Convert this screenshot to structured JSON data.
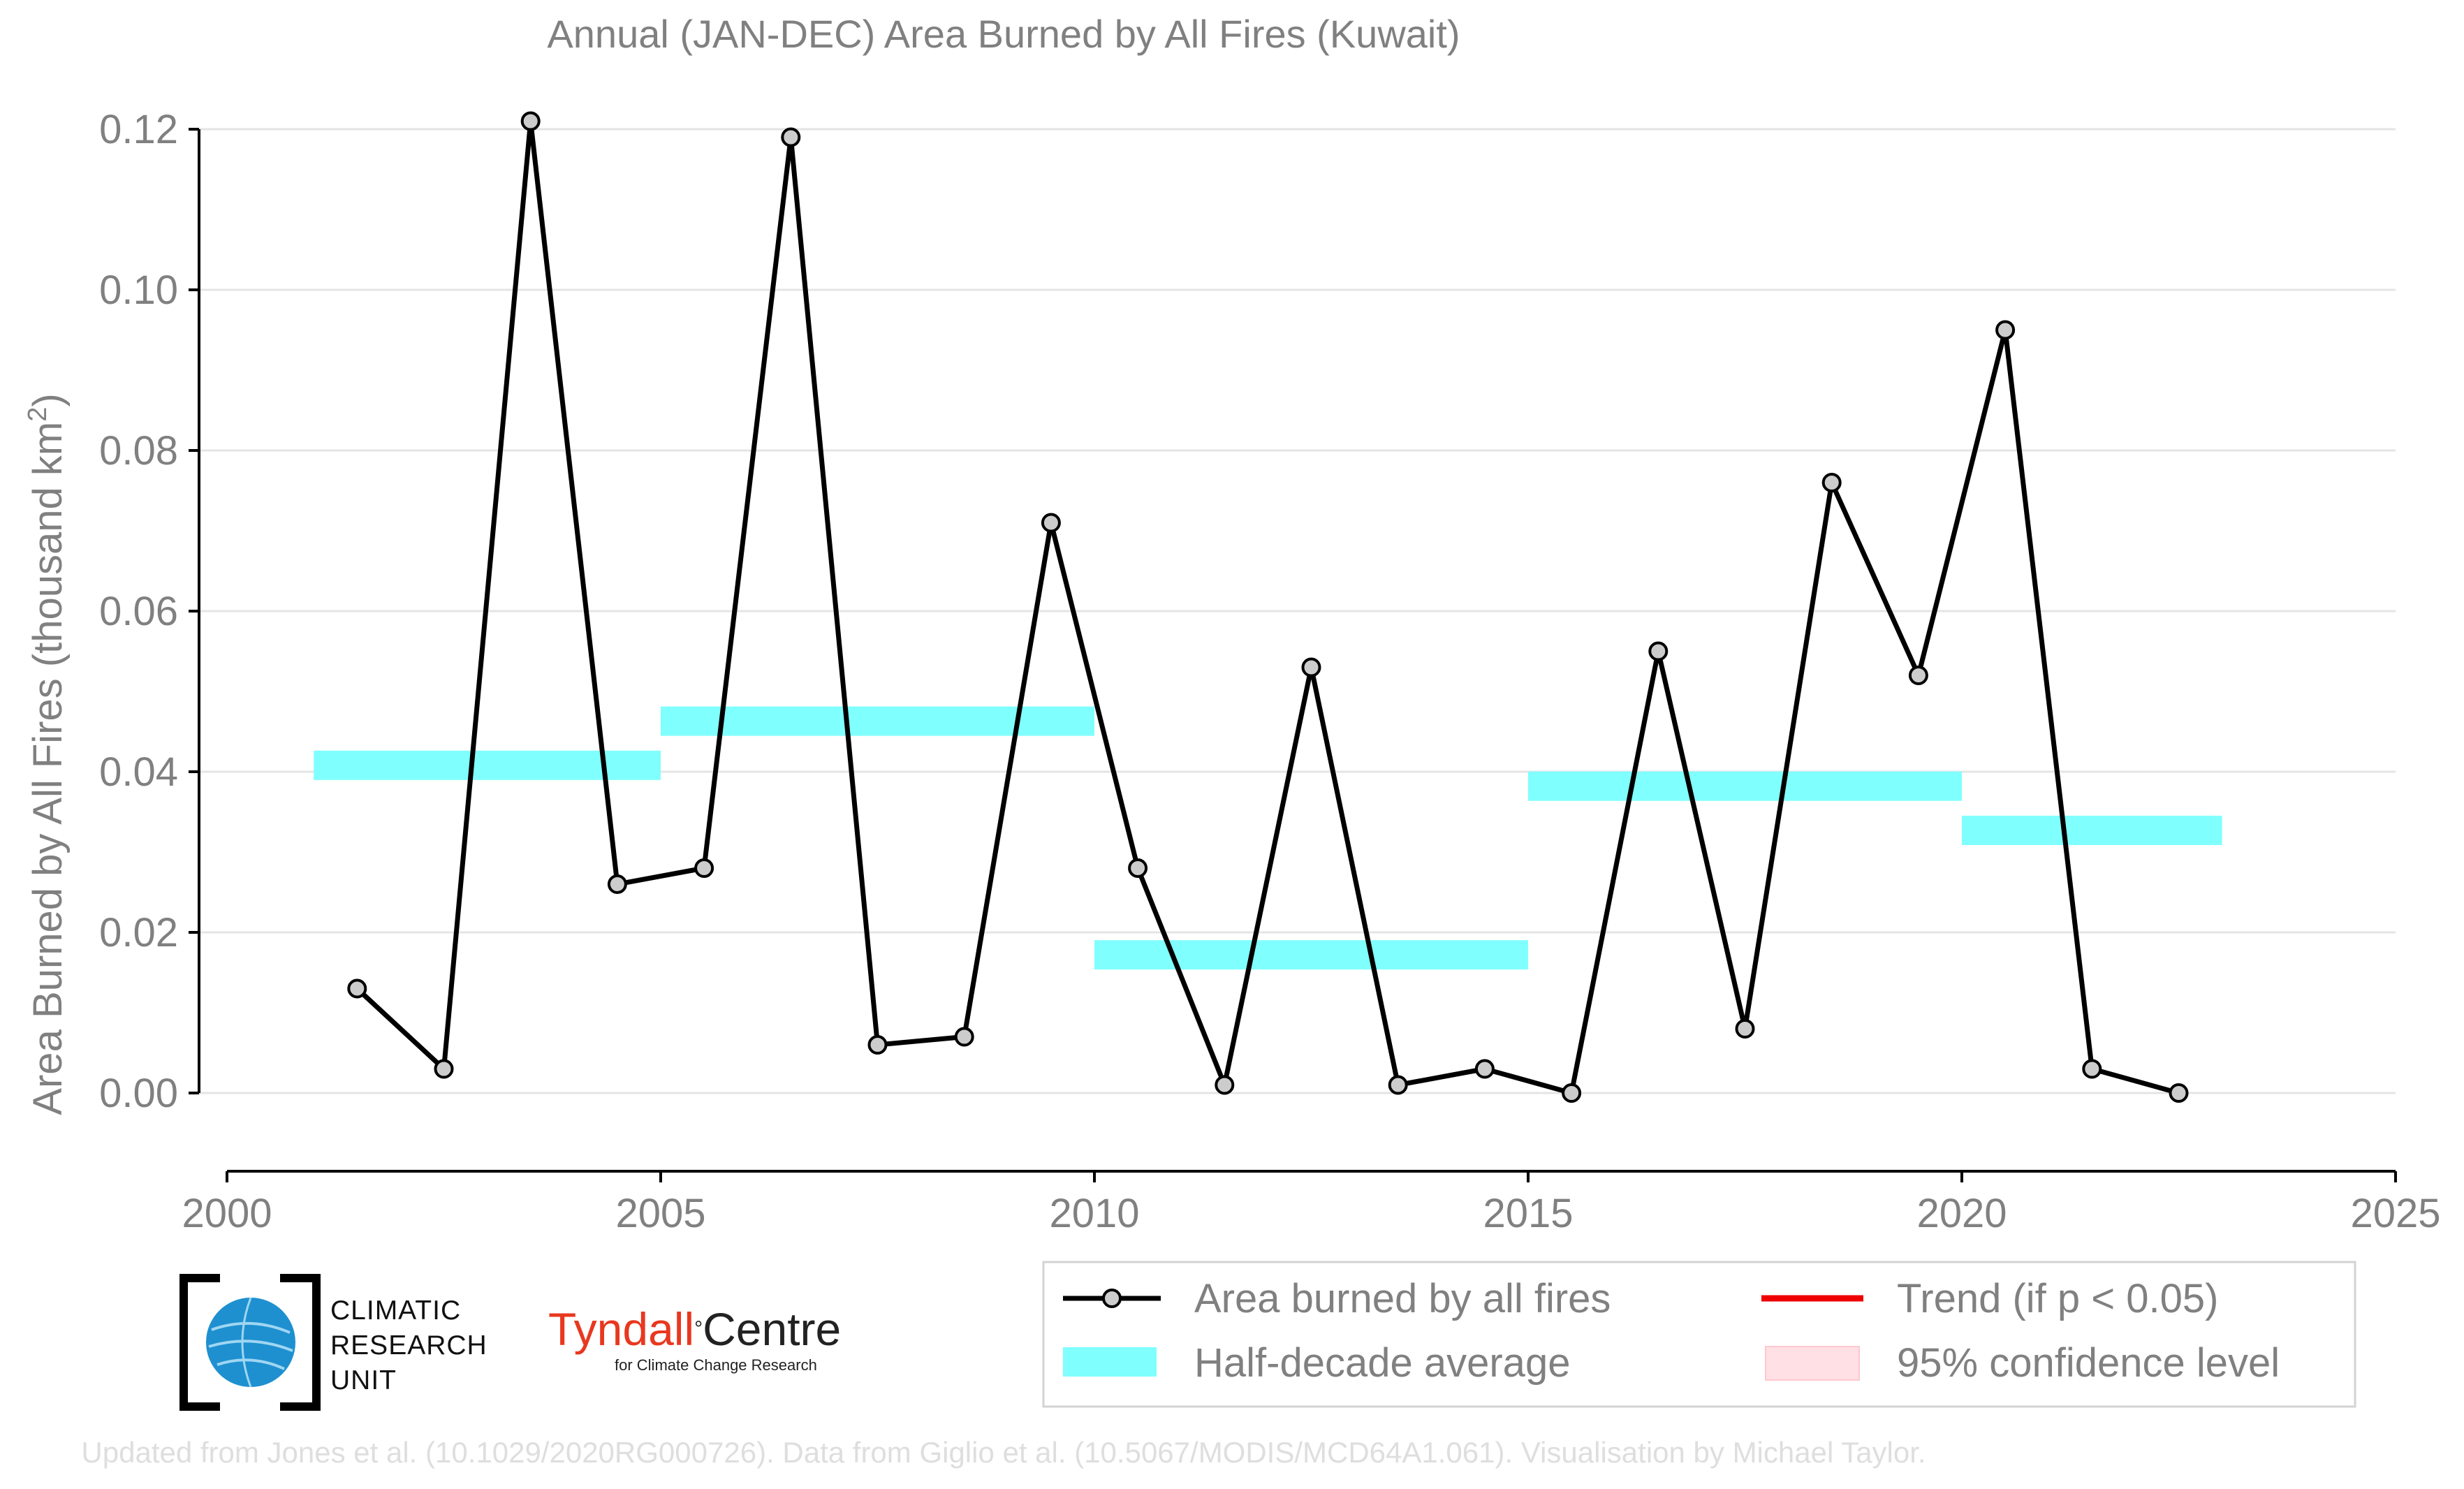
{
  "chart_data": {
    "type": "line",
    "title": "Annual (JAN-DEC) Area Burned by All Fires (Kuwait)",
    "ylabel": "Area Burned by All Fires (thousand km",
    "ylabel_sup": "2",
    "ylabel_close": ")",
    "xlim": [
      2000,
      2025
    ],
    "ylim": [
      -0.01,
      0.122
    ],
    "x_ticks": [
      2000,
      2005,
      2010,
      2015,
      2020,
      2025
    ],
    "x_tick_labels": [
      "2000",
      "2005",
      "2010",
      "2015",
      "2020",
      "2025"
    ],
    "y_ticks": [
      0.0,
      0.02,
      0.04,
      0.06,
      0.08,
      0.1,
      0.12
    ],
    "y_tick_labels": [
      "0.00",
      "0.02",
      "0.04",
      "0.06",
      "0.08",
      "0.10",
      "0.12"
    ],
    "grid": "horizontal",
    "legend_position": "bottom-right",
    "series": [
      {
        "name": "Area burned by all fires",
        "color": "#000000",
        "marker_color": "#cccccc",
        "x": [
          2001.5,
          2002.5,
          2003.5,
          2004.5,
          2005.5,
          2006.5,
          2007.5,
          2008.5,
          2009.5,
          2010.5,
          2011.5,
          2012.5,
          2013.5,
          2014.5,
          2015.5,
          2016.5,
          2017.5,
          2018.5,
          2019.5,
          2020.5,
          2021.5,
          2022.5
        ],
        "values": [
          0.013,
          0.003,
          0.121,
          0.026,
          0.028,
          0.119,
          0.006,
          0.007,
          0.071,
          0.028,
          0.001,
          0.053,
          0.001,
          0.003,
          0.0,
          0.055,
          0.008,
          0.076,
          0.052,
          0.095,
          0.003,
          0.0
        ]
      }
    ],
    "half_decade_averages": {
      "name": "Half-decade average",
      "color": "#80ffff",
      "segments": [
        {
          "start": 2001,
          "end": 2005,
          "value": 0.0408
        },
        {
          "start": 2005,
          "end": 2010,
          "value": 0.0463
        },
        {
          "start": 2010,
          "end": 2015,
          "value": 0.0172
        },
        {
          "start": 2015,
          "end": 2020,
          "value": 0.0382
        },
        {
          "start": 2020,
          "end": 2023,
          "value": 0.0327
        }
      ]
    },
    "legend": [
      {
        "label": "Area burned by all fires",
        "style": "line-marker",
        "color": "#000000"
      },
      {
        "label": "Trend (if p < 0.05)",
        "style": "line",
        "color": "#ee0000"
      },
      {
        "label": "Half-decade average",
        "style": "band",
        "color": "#80ffff"
      },
      {
        "label": "95% confidence level",
        "style": "band",
        "color": "#ffe0e4"
      }
    ]
  },
  "logos": {
    "cru_lines": [
      "CLIMATIC",
      "RESEARCH",
      "UNIT"
    ],
    "tyndall_main": "Tyndall",
    "tyndall_degree": "°",
    "tyndall_centre": "Centre",
    "tyndall_sub": "for Climate Change Research"
  },
  "footer": {
    "credit": "Updated from Jones et al. (10.1029/2020RG000726). Data from Giglio et al. (10.5067/MODIS/MCD64A1.061). Visualisation by Michael Taylor."
  }
}
